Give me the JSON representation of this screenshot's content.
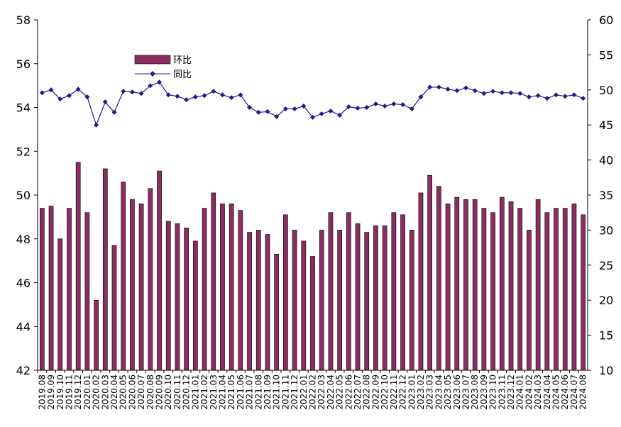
{
  "chart_data": {
    "type": "bar+line",
    "categories": [
      "2019.08",
      "2019.09",
      "2019.10",
      "2019.11",
      "2019.12",
      "2020.01",
      "2020.02",
      "2020.03",
      "2020.04",
      "2020.05",
      "2020.06",
      "2020.07",
      "2020.08",
      "2020.09",
      "2020.10",
      "2020.11",
      "2020.12",
      "2021.01",
      "2021.02",
      "2021.03",
      "2021.04",
      "2021.05",
      "2021.06",
      "2021.07",
      "2021.08",
      "2021.09",
      "2021.10",
      "2021.11",
      "2021.12",
      "2022.01",
      "2022.02",
      "2022.03",
      "2022.04",
      "2022.05",
      "2022.06",
      "2022.07",
      "2022.08",
      "2022.09",
      "2022.10",
      "2022.11",
      "2022.12",
      "2023.01",
      "2023.02",
      "2023.03",
      "2023.04",
      "2023.05",
      "2023.06",
      "2023.07",
      "2023.08",
      "2023.09",
      "2023.10",
      "2023.11",
      "2023.12",
      "2024.01",
      "2024.02",
      "2024.03",
      "2024.04",
      "2024.05",
      "2024.06",
      "2024.07",
      "2024.08"
    ],
    "series": [
      {
        "name": "环比",
        "kind": "bar",
        "axis": "left",
        "color": "#8b2e5f",
        "values": [
          49.4,
          49.5,
          48.0,
          49.4,
          51.5,
          49.2,
          45.2,
          51.2,
          47.7,
          50.6,
          49.8,
          49.6,
          50.3,
          51.1,
          48.8,
          48.7,
          48.5,
          47.9,
          49.4,
          50.1,
          49.6,
          49.6,
          49.3,
          48.3,
          48.4,
          48.2,
          47.3,
          49.1,
          48.4,
          47.9,
          47.2,
          48.4,
          49.2,
          48.4,
          49.2,
          48.7,
          48.3,
          48.6,
          48.6,
          49.2,
          49.1,
          48.4,
          50.1,
          50.9,
          50.4,
          49.6,
          49.9,
          49.8,
          49.8,
          49.4,
          49.2,
          49.9,
          49.7,
          49.4,
          48.4,
          49.8,
          49.2,
          49.4,
          49.4,
          49.6,
          49.1
        ]
      },
      {
        "name": "同比",
        "kind": "line",
        "axis": "right",
        "color": "#1b1b8f",
        "values": [
          49.6,
          50.0,
          48.7,
          49.2,
          50.1,
          49.0,
          45.0,
          48.3,
          46.8,
          49.8,
          49.7,
          49.5,
          50.6,
          51.1,
          49.3,
          49.1,
          48.6,
          49.0,
          49.2,
          49.8,
          49.3,
          48.9,
          49.3,
          47.5,
          46.8,
          46.9,
          46.2,
          47.3,
          47.3,
          47.7,
          46.1,
          46.6,
          47.0,
          46.4,
          47.6,
          47.4,
          47.5,
          48.0,
          47.7,
          48.0,
          47.9,
          47.3,
          49.0,
          50.4,
          50.4,
          50.1,
          49.9,
          50.3,
          49.9,
          49.5,
          49.8,
          49.6,
          49.6,
          49.5,
          49.0,
          49.2,
          48.8,
          49.3,
          49.1,
          49.3,
          48.8
        ]
      }
    ],
    "y_left": {
      "min": 42,
      "max": 58,
      "ticks": [
        42,
        44,
        46,
        48,
        50,
        52,
        54,
        56,
        58
      ]
    },
    "y_right": {
      "min": 10,
      "max": 60,
      "ticks": [
        10,
        15,
        20,
        25,
        30,
        35,
        40,
        45,
        50,
        55,
        60
      ]
    },
    "title": "",
    "xlabel": "",
    "ylabel": "",
    "grid": false,
    "legend_position": "top-left",
    "legend": [
      "环比",
      "同比"
    ]
  }
}
